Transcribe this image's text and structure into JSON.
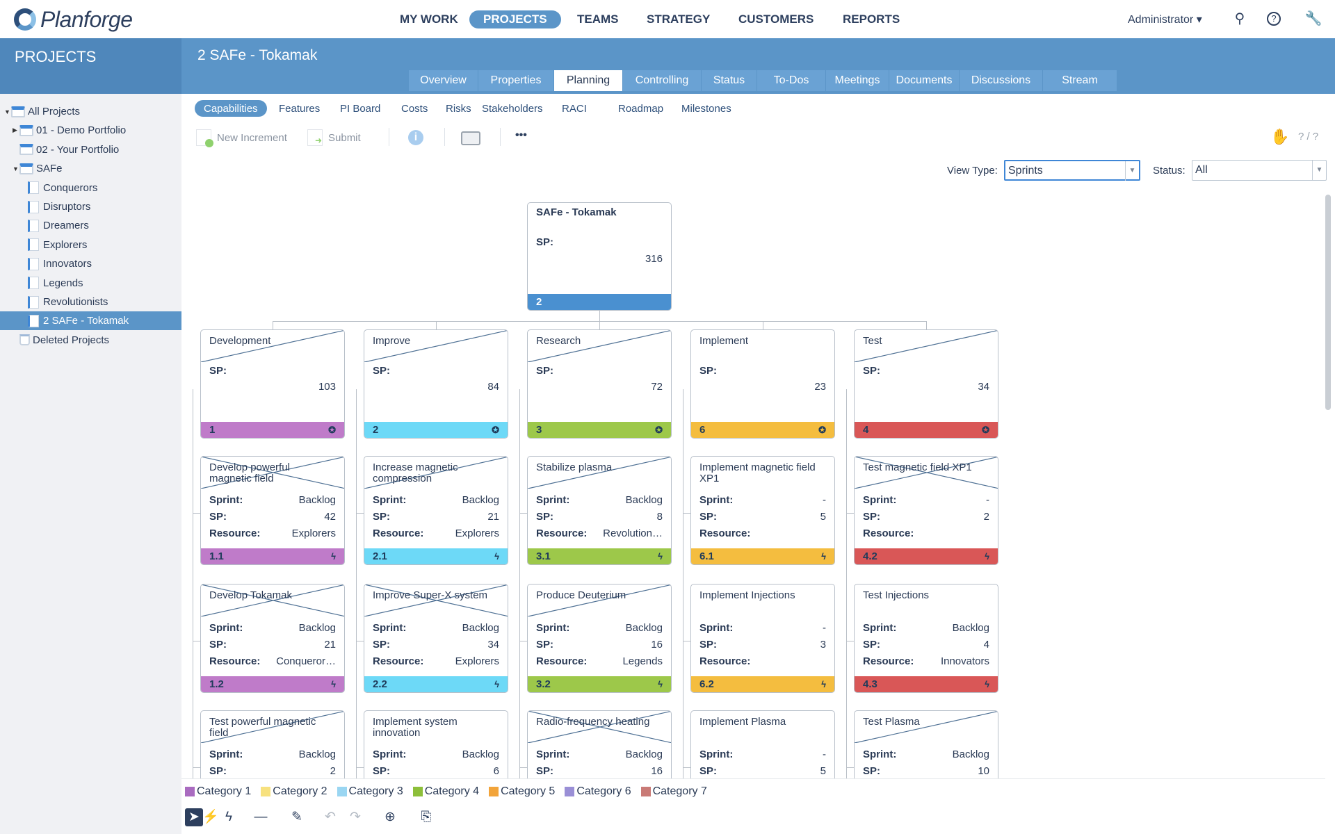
{
  "app": {
    "logo": "Planforge",
    "nav": [
      "MY WORK",
      "PROJECTS",
      "TEAMS",
      "STRATEGY",
      "CUSTOMERS",
      "REPORTS"
    ],
    "active_nav": "PROJECTS",
    "user": "Administrator"
  },
  "sidebar": {
    "title": "PROJECTS",
    "items": [
      {
        "label": "All Projects",
        "level": 0,
        "arrow": "▼",
        "type": "folder"
      },
      {
        "label": "01 - Demo Portfolio",
        "level": 1,
        "arrow": "▶",
        "type": "folder"
      },
      {
        "label": "02 - Your Portfolio",
        "level": 1,
        "arrow": "",
        "type": "folder"
      },
      {
        "label": "SAFe",
        "level": 1,
        "arrow": "▼",
        "type": "folder"
      },
      {
        "label": "Conquerors",
        "level": 2,
        "arrow": "",
        "type": "project"
      },
      {
        "label": "Disruptors",
        "level": 2,
        "arrow": "",
        "type": "project"
      },
      {
        "label": "Dreamers",
        "level": 2,
        "arrow": "",
        "type": "project"
      },
      {
        "label": "Explorers",
        "level": 2,
        "arrow": "",
        "type": "project"
      },
      {
        "label": "Innovators",
        "level": 2,
        "arrow": "",
        "type": "project"
      },
      {
        "label": "Legends",
        "level": 2,
        "arrow": "",
        "type": "project"
      },
      {
        "label": "Revolutionists",
        "level": 2,
        "arrow": "",
        "type": "project"
      },
      {
        "label": "2 SAFe - Tokamak",
        "level": 2,
        "arrow": "",
        "type": "project",
        "selected": true
      },
      {
        "label": "Deleted Projects",
        "level": 1,
        "arrow": "",
        "type": "trash"
      }
    ]
  },
  "page": {
    "title": "2 SAFe - Tokamak",
    "tabs": [
      "Overview",
      "Properties",
      "Planning",
      "Controlling",
      "Status",
      "To-Dos",
      "Meetings",
      "Documents",
      "Discussions",
      "Stream"
    ],
    "active_tab": "Planning",
    "subtabs": [
      "Capabilities",
      "Features",
      "PI Board",
      "Costs",
      "Risks",
      "Stakeholders",
      "RACI",
      "Roadmap",
      "Milestones"
    ],
    "active_subtab": "Capabilities"
  },
  "toolbar": {
    "new_increment": "New Increment",
    "submit": "Submit",
    "more": "•••",
    "counter": "? / ?"
  },
  "filters": {
    "view_type_label": "View Type:",
    "view_type": "Sprints",
    "status_label": "Status:",
    "status": "All"
  },
  "root": {
    "title": "SAFe - Tokamak",
    "sp_label": "SP:",
    "sp": "316",
    "id": "2",
    "color": "#4a90d0"
  },
  "columns": [
    {
      "title": "Development",
      "sp": "103",
      "id": "1",
      "color": "#bf7bc9",
      "line": "single",
      "items": [
        {
          "title": "Develop powerful magnetic field",
          "sprint": "Backlog",
          "sp": "42",
          "resource": "Explorers",
          "id": "1.1",
          "line": "cross"
        },
        {
          "title": "Develop Tokamak",
          "sprint": "Backlog",
          "sp": "21",
          "resource": "Conqueror…",
          "id": "1.2",
          "line": "cross"
        },
        {
          "title": "Test powerful magnetic field",
          "sprint": "Backlog",
          "sp": "2",
          "resource": "",
          "id": "",
          "line": "single"
        }
      ]
    },
    {
      "title": "Improve",
      "sp": "84",
      "id": "2",
      "color": "#6dd9f7",
      "line": "single",
      "items": [
        {
          "title": "Increase magnetic compression",
          "sprint": "Backlog",
          "sp": "21",
          "resource": "Explorers",
          "id": "2.1",
          "line": "single"
        },
        {
          "title": "Improve Super-X system",
          "sprint": "Backlog",
          "sp": "34",
          "resource": "Explorers",
          "id": "2.2",
          "line": "cross"
        },
        {
          "title": "Implement system innovation",
          "sprint": "Backlog",
          "sp": "6",
          "resource": "",
          "id": "",
          "line": "none"
        }
      ]
    },
    {
      "title": "Research",
      "sp": "72",
      "id": "3",
      "color": "#9dc84a",
      "line": "single",
      "items": [
        {
          "title": "Stabilize plasma",
          "sprint": "Backlog",
          "sp": "8",
          "resource": "Revolution…",
          "id": "3.1",
          "line": "single"
        },
        {
          "title": "Produce Deuterium",
          "sprint": "Backlog",
          "sp": "16",
          "resource": "Legends",
          "id": "3.2",
          "line": "single"
        },
        {
          "title": "Radio-frequency heating",
          "sprint": "Backlog",
          "sp": "16",
          "resource": "",
          "id": "",
          "line": "cross"
        }
      ]
    },
    {
      "title": "Implement",
      "sp": "23",
      "id": "6",
      "color": "#f4bd3f",
      "line": "none",
      "items": [
        {
          "title": "Implement magnetic field XP1",
          "sprint": "-",
          "sp": "5",
          "resource": "",
          "id": "6.1",
          "line": "none"
        },
        {
          "title": "Implement Injections",
          "sprint": "-",
          "sp": "3",
          "resource": "",
          "id": "6.2",
          "line": "none"
        },
        {
          "title": "Implement Plasma",
          "sprint": "-",
          "sp": "5",
          "resource": "",
          "id": "",
          "line": "none"
        }
      ]
    },
    {
      "title": "Test",
      "sp": "34",
      "id": "4",
      "color": "#d95757",
      "line": "single",
      "items": [
        {
          "title": "Test magnetic field XP1",
          "sprint": "-",
          "sp": "2",
          "resource": "",
          "id": "4.2",
          "line": "cross"
        },
        {
          "title": "Test Injections",
          "sprint": "Backlog",
          "sp": "4",
          "resource": "Innovators",
          "id": "4.3",
          "line": "none"
        },
        {
          "title": "Test Plasma",
          "sprint": "Backlog",
          "sp": "10",
          "resource": "",
          "id": "",
          "line": "single"
        }
      ]
    }
  ],
  "labels": {
    "sprint": "Sprint:",
    "sp": "SP:",
    "resource": "Resource:"
  },
  "legend": [
    {
      "label": "Category 1",
      "color": "#a96bc0"
    },
    {
      "label": "Category 2",
      "color": "#f7e17e"
    },
    {
      "label": "Category 3",
      "color": "#9ad6f2"
    },
    {
      "label": "Category 4",
      "color": "#8dbf3a"
    },
    {
      "label": "Category 5",
      "color": "#f2a43a"
    },
    {
      "label": "Category 6",
      "color": "#9a8fd6"
    },
    {
      "label": "Category 7",
      "color": "#c97a76"
    }
  ]
}
